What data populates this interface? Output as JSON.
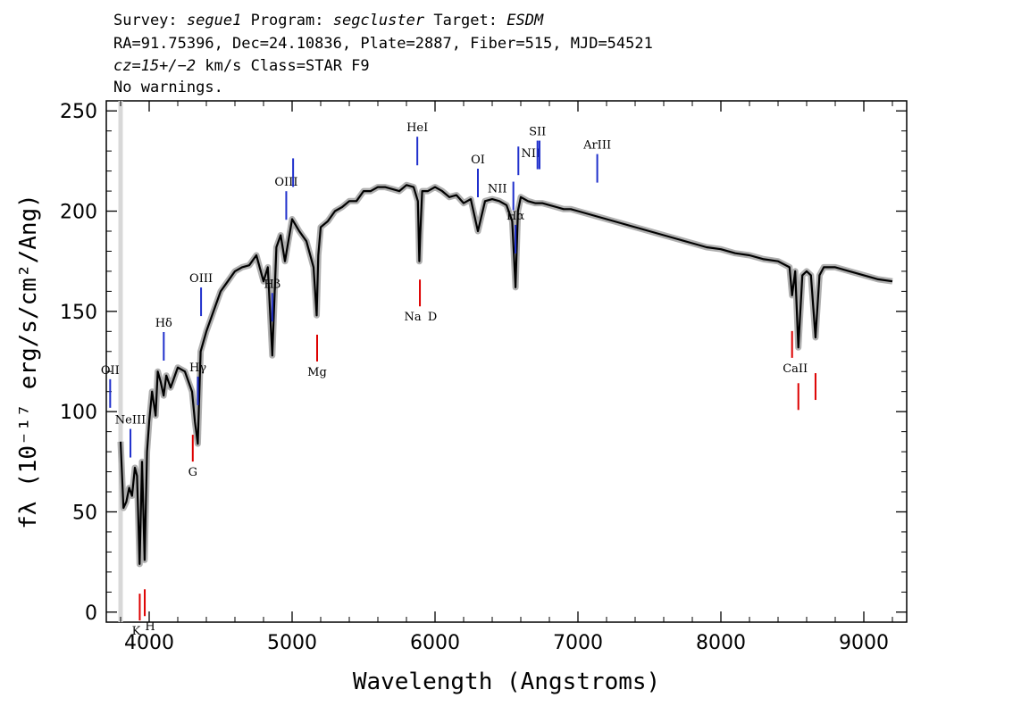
{
  "header": {
    "survey_key": "Survey:",
    "survey": "segue1",
    "program_key": "Program:",
    "program": "segcluster",
    "target_key": "Target:",
    "target": "ESDM",
    "line2": "RA=91.75396, Dec=24.10836, Plate=2887, Fiber=515, MJD=54521",
    "redshift": "cz=15+/−2",
    "redshift_unit": "km/s",
    "class_text": "Class=STAR F9",
    "warnings": "No warnings."
  },
  "chart_data": {
    "type": "line",
    "xlabel": "Wavelength (Angstroms)",
    "ylabel": "fλ (10⁻¹⁷ erg/s/cm²/Ang)",
    "xlim": [
      3700,
      9300
    ],
    "ylim": [
      -5,
      255
    ],
    "xticks": [
      4000,
      5000,
      6000,
      7000,
      8000,
      9000
    ],
    "yticks": [
      0,
      50,
      100,
      150,
      200,
      250
    ],
    "series": [
      {
        "color": "#000000",
        "error_color": "#b0b0b0",
        "x": [
          3800,
          3820,
          3840,
          3860,
          3880,
          3900,
          3915,
          3933,
          3950,
          3968,
          3985,
          4000,
          4020,
          4045,
          4060,
          4080,
          4101,
          4120,
          4150,
          4200,
          4250,
          4300,
          4320,
          4340,
          4360,
          4400,
          4450,
          4500,
          4550,
          4600,
          4650,
          4700,
          4750,
          4800,
          4830,
          4861,
          4890,
          4920,
          4950,
          5000,
          5050,
          5100,
          5150,
          5172,
          5183,
          5200,
          5250,
          5300,
          5350,
          5400,
          5450,
          5500,
          5550,
          5600,
          5650,
          5700,
          5750,
          5800,
          5850,
          5880,
          5890,
          5896,
          5910,
          5950,
          6000,
          6050,
          6100,
          6150,
          6200,
          6250,
          6300,
          6350,
          6400,
          6450,
          6500,
          6540,
          6563,
          6580,
          6600,
          6650,
          6700,
          6750,
          6800,
          6850,
          6900,
          6950,
          7000,
          7100,
          7200,
          7300,
          7400,
          7500,
          7600,
          7700,
          7800,
          7900,
          8000,
          8100,
          8200,
          8300,
          8400,
          8480,
          8498,
          8520,
          8542,
          8570,
          8600,
          8630,
          8662,
          8690,
          8720,
          8800,
          8900,
          9000,
          9100,
          9200
        ],
        "y": [
          85,
          52,
          55,
          62,
          58,
          72,
          68,
          24,
          75,
          26,
          80,
          95,
          110,
          98,
          120,
          115,
          108,
          118,
          112,
          122,
          120,
          110,
          95,
          84,
          130,
          140,
          150,
          160,
          165,
          170,
          172,
          173,
          178,
          165,
          172,
          128,
          182,
          188,
          175,
          196,
          190,
          185,
          172,
          148,
          178,
          192,
          195,
          200,
          202,
          205,
          205,
          210,
          210,
          212,
          212,
          211,
          210,
          213,
          212,
          205,
          175,
          188,
          210,
          210,
          212,
          210,
          207,
          208,
          204,
          206,
          190,
          205,
          206,
          205,
          203,
          195,
          162,
          200,
          207,
          205,
          204,
          204,
          203,
          202,
          201,
          201,
          200,
          198,
          196,
          194,
          192,
          190,
          188,
          186,
          184,
          182,
          181,
          179,
          178,
          176,
          175,
          172,
          158,
          170,
          132,
          168,
          170,
          168,
          137,
          168,
          172,
          172,
          170,
          168,
          166,
          165
        ]
      }
    ],
    "lines": {
      "emission_color": "#1f2fcc",
      "absorption_color": "#dd0000",
      "emission": [
        {
          "label": "OII",
          "x": 3727
        },
        {
          "label": "NeIII",
          "x": 3869
        },
        {
          "label": "Hδ",
          "x": 4102
        },
        {
          "label": "Hγ",
          "x": 4341
        },
        {
          "label": "OIII",
          "x": 4363
        },
        {
          "label": "Hβ",
          "x": 4861
        },
        {
          "label": "OIII",
          "x": 4959
        },
        {
          "label": "OIII",
          "x": 5007
        },
        {
          "label": "HeI",
          "x": 5876
        },
        {
          "label": "OI",
          "x": 6300
        },
        {
          "label": "NII",
          "x": 6548
        },
        {
          "label": "Hα",
          "x": 6563
        },
        {
          "label": "NII",
          "x": 6583
        },
        {
          "label": "SII",
          "x": 6717
        },
        {
          "label": "SII",
          "x": 6731
        },
        {
          "label": "ArIII",
          "x": 7135
        }
      ],
      "absorption": [
        {
          "label": "K",
          "x": 3934
        },
        {
          "label": "H",
          "x": 3969
        },
        {
          "label": "G",
          "x": 4305
        },
        {
          "label": "Mg",
          "x": 5175
        },
        {
          "label": "Na",
          "x": 5894
        },
        {
          "label": "D",
          "x": 5894
        },
        {
          "label": "CaII",
          "x": 8498
        },
        {
          "label": "CaII",
          "x": 8542
        },
        {
          "label": "CaII",
          "x": 8662
        }
      ]
    }
  }
}
